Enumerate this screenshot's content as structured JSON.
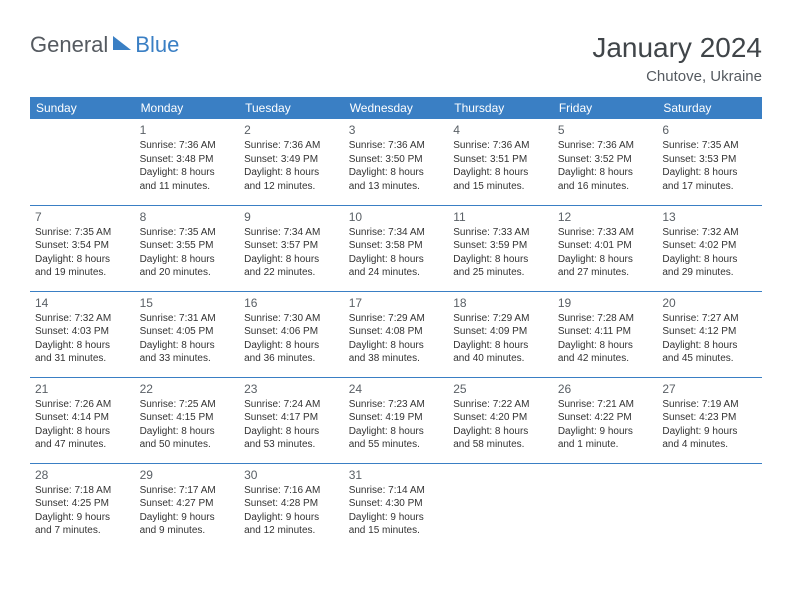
{
  "logo": {
    "text1": "General",
    "text2": "Blue"
  },
  "title": "January 2024",
  "location": "Chutove, Ukraine",
  "colors": {
    "header_bg": "#3a7fc4",
    "header_fg": "#ffffff",
    "border": "#3a7fc4",
    "text": "#333333",
    "muted": "#5a6066"
  },
  "day_headers": [
    "Sunday",
    "Monday",
    "Tuesday",
    "Wednesday",
    "Thursday",
    "Friday",
    "Saturday"
  ],
  "weeks": [
    [
      null,
      {
        "n": "1",
        "sr": "Sunrise: 7:36 AM",
        "ss": "Sunset: 3:48 PM",
        "d1": "Daylight: 8 hours",
        "d2": "and 11 minutes."
      },
      {
        "n": "2",
        "sr": "Sunrise: 7:36 AM",
        "ss": "Sunset: 3:49 PM",
        "d1": "Daylight: 8 hours",
        "d2": "and 12 minutes."
      },
      {
        "n": "3",
        "sr": "Sunrise: 7:36 AM",
        "ss": "Sunset: 3:50 PM",
        "d1": "Daylight: 8 hours",
        "d2": "and 13 minutes."
      },
      {
        "n": "4",
        "sr": "Sunrise: 7:36 AM",
        "ss": "Sunset: 3:51 PM",
        "d1": "Daylight: 8 hours",
        "d2": "and 15 minutes."
      },
      {
        "n": "5",
        "sr": "Sunrise: 7:36 AM",
        "ss": "Sunset: 3:52 PM",
        "d1": "Daylight: 8 hours",
        "d2": "and 16 minutes."
      },
      {
        "n": "6",
        "sr": "Sunrise: 7:35 AM",
        "ss": "Sunset: 3:53 PM",
        "d1": "Daylight: 8 hours",
        "d2": "and 17 minutes."
      }
    ],
    [
      {
        "n": "7",
        "sr": "Sunrise: 7:35 AM",
        "ss": "Sunset: 3:54 PM",
        "d1": "Daylight: 8 hours",
        "d2": "and 19 minutes."
      },
      {
        "n": "8",
        "sr": "Sunrise: 7:35 AM",
        "ss": "Sunset: 3:55 PM",
        "d1": "Daylight: 8 hours",
        "d2": "and 20 minutes."
      },
      {
        "n": "9",
        "sr": "Sunrise: 7:34 AM",
        "ss": "Sunset: 3:57 PM",
        "d1": "Daylight: 8 hours",
        "d2": "and 22 minutes."
      },
      {
        "n": "10",
        "sr": "Sunrise: 7:34 AM",
        "ss": "Sunset: 3:58 PM",
        "d1": "Daylight: 8 hours",
        "d2": "and 24 minutes."
      },
      {
        "n": "11",
        "sr": "Sunrise: 7:33 AM",
        "ss": "Sunset: 3:59 PM",
        "d1": "Daylight: 8 hours",
        "d2": "and 25 minutes."
      },
      {
        "n": "12",
        "sr": "Sunrise: 7:33 AM",
        "ss": "Sunset: 4:01 PM",
        "d1": "Daylight: 8 hours",
        "d2": "and 27 minutes."
      },
      {
        "n": "13",
        "sr": "Sunrise: 7:32 AM",
        "ss": "Sunset: 4:02 PM",
        "d1": "Daylight: 8 hours",
        "d2": "and 29 minutes."
      }
    ],
    [
      {
        "n": "14",
        "sr": "Sunrise: 7:32 AM",
        "ss": "Sunset: 4:03 PM",
        "d1": "Daylight: 8 hours",
        "d2": "and 31 minutes."
      },
      {
        "n": "15",
        "sr": "Sunrise: 7:31 AM",
        "ss": "Sunset: 4:05 PM",
        "d1": "Daylight: 8 hours",
        "d2": "and 33 minutes."
      },
      {
        "n": "16",
        "sr": "Sunrise: 7:30 AM",
        "ss": "Sunset: 4:06 PM",
        "d1": "Daylight: 8 hours",
        "d2": "and 36 minutes."
      },
      {
        "n": "17",
        "sr": "Sunrise: 7:29 AM",
        "ss": "Sunset: 4:08 PM",
        "d1": "Daylight: 8 hours",
        "d2": "and 38 minutes."
      },
      {
        "n": "18",
        "sr": "Sunrise: 7:29 AM",
        "ss": "Sunset: 4:09 PM",
        "d1": "Daylight: 8 hours",
        "d2": "and 40 minutes."
      },
      {
        "n": "19",
        "sr": "Sunrise: 7:28 AM",
        "ss": "Sunset: 4:11 PM",
        "d1": "Daylight: 8 hours",
        "d2": "and 42 minutes."
      },
      {
        "n": "20",
        "sr": "Sunrise: 7:27 AM",
        "ss": "Sunset: 4:12 PM",
        "d1": "Daylight: 8 hours",
        "d2": "and 45 minutes."
      }
    ],
    [
      {
        "n": "21",
        "sr": "Sunrise: 7:26 AM",
        "ss": "Sunset: 4:14 PM",
        "d1": "Daylight: 8 hours",
        "d2": "and 47 minutes."
      },
      {
        "n": "22",
        "sr": "Sunrise: 7:25 AM",
        "ss": "Sunset: 4:15 PM",
        "d1": "Daylight: 8 hours",
        "d2": "and 50 minutes."
      },
      {
        "n": "23",
        "sr": "Sunrise: 7:24 AM",
        "ss": "Sunset: 4:17 PM",
        "d1": "Daylight: 8 hours",
        "d2": "and 53 minutes."
      },
      {
        "n": "24",
        "sr": "Sunrise: 7:23 AM",
        "ss": "Sunset: 4:19 PM",
        "d1": "Daylight: 8 hours",
        "d2": "and 55 minutes."
      },
      {
        "n": "25",
        "sr": "Sunrise: 7:22 AM",
        "ss": "Sunset: 4:20 PM",
        "d1": "Daylight: 8 hours",
        "d2": "and 58 minutes."
      },
      {
        "n": "26",
        "sr": "Sunrise: 7:21 AM",
        "ss": "Sunset: 4:22 PM",
        "d1": "Daylight: 9 hours",
        "d2": "and 1 minute."
      },
      {
        "n": "27",
        "sr": "Sunrise: 7:19 AM",
        "ss": "Sunset: 4:23 PM",
        "d1": "Daylight: 9 hours",
        "d2": "and 4 minutes."
      }
    ],
    [
      {
        "n": "28",
        "sr": "Sunrise: 7:18 AM",
        "ss": "Sunset: 4:25 PM",
        "d1": "Daylight: 9 hours",
        "d2": "and 7 minutes."
      },
      {
        "n": "29",
        "sr": "Sunrise: 7:17 AM",
        "ss": "Sunset: 4:27 PM",
        "d1": "Daylight: 9 hours",
        "d2": "and 9 minutes."
      },
      {
        "n": "30",
        "sr": "Sunrise: 7:16 AM",
        "ss": "Sunset: 4:28 PM",
        "d1": "Daylight: 9 hours",
        "d2": "and 12 minutes."
      },
      {
        "n": "31",
        "sr": "Sunrise: 7:14 AM",
        "ss": "Sunset: 4:30 PM",
        "d1": "Daylight: 9 hours",
        "d2": "and 15 minutes."
      },
      null,
      null,
      null
    ]
  ]
}
